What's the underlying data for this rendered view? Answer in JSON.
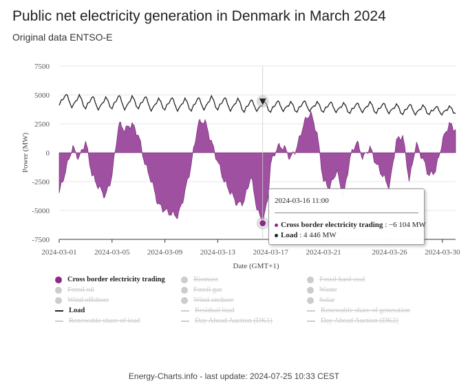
{
  "header": {
    "title": "Public net electricity generation in Denmark in March 2024",
    "subtitle": "Original data ENTSO-E"
  },
  "chart_data": {
    "type": "area",
    "title": "Public net electricity generation in Denmark in March 2024",
    "xlabel": "Date (GMT+1)",
    "ylabel": "Power (MW)",
    "ylim": [
      -7500,
      7500
    ],
    "yticks": [
      7500,
      5000,
      2500,
      0,
      -2500,
      -5000,
      -7500
    ],
    "ytick_labels": [
      "7500",
      "5000",
      "2500",
      "0",
      "-2500",
      "-5000",
      "-7500"
    ],
    "xlim_days": [
      1,
      31
    ],
    "xticks": [
      {
        "label": "2024-03-01",
        "day": 1
      },
      {
        "label": "2024-03-05",
        "day": 5
      },
      {
        "label": "2024-03-09",
        "day": 9
      },
      {
        "label": "2024-03-13",
        "day": 13
      },
      {
        "label": "2024-03-17",
        "day": 17
      },
      {
        "label": "2024-03-21",
        "day": 21
      },
      {
        "label": "2024-03-26",
        "day": 26
      },
      {
        "label": "2024-03-30",
        "day": 30
      }
    ],
    "grid": true,
    "series": [
      {
        "name": "Cross border electricity trading",
        "color": "#8b2a8b",
        "style": "area",
        "x_day": [
          1,
          1.5,
          2,
          2.5,
          3,
          3.5,
          4,
          4.5,
          5,
          5.5,
          6,
          6.5,
          7,
          7.5,
          8,
          8.5,
          9,
          9.5,
          10,
          10.5,
          11,
          11.5,
          12,
          12.5,
          13,
          13.5,
          14,
          14.5,
          15,
          15.5,
          16,
          16.4,
          16.8,
          17,
          17.5,
          18,
          18.5,
          19,
          19.5,
          20,
          20.5,
          21,
          21.5,
          22,
          22.5,
          23,
          23.5,
          24,
          24.5,
          25,
          25.5,
          26,
          26.5,
          27,
          27.5,
          28,
          28.5,
          29,
          29.5,
          30,
          30.5,
          31
        ],
        "values": [
          -3500,
          -1500,
          500,
          -500,
          1000,
          -2000,
          -3000,
          -3800,
          -2000,
          2500,
          2000,
          2500,
          1500,
          -1000,
          -2500,
          -4500,
          -5000,
          -5300,
          -5500,
          -3500,
          -1000,
          2500,
          2800,
          1000,
          -800,
          -2500,
          -3500,
          -4500,
          -4200,
          -2000,
          -5000,
          -6104,
          -4000,
          -1000,
          500,
          500,
          -500,
          500,
          2500,
          3500,
          1800,
          -2500,
          -3000,
          -1500,
          -4000,
          -500,
          1000,
          -500,
          500,
          -1000,
          -2000,
          -3000,
          1000,
          1500,
          -2500,
          800,
          -500,
          -2000,
          -1500,
          1000,
          2500,
          2000
        ]
      },
      {
        "name": "Load",
        "color": "#222222",
        "style": "line",
        "x_day": [
          1,
          1.5,
          2,
          2.5,
          3,
          3.5,
          4,
          4.5,
          5,
          5.5,
          6,
          6.5,
          7,
          7.5,
          8,
          8.5,
          9,
          9.5,
          10,
          10.5,
          11,
          11.5,
          12,
          12.5,
          13,
          13.5,
          14,
          14.5,
          15,
          15.5,
          16,
          16.5,
          17,
          17.5,
          18,
          18.5,
          19,
          19.5,
          20,
          20.5,
          21,
          21.5,
          22,
          22.5,
          23,
          23.5,
          24,
          24.5,
          25,
          25.5,
          26,
          26.5,
          27,
          27.5,
          28,
          28.5,
          29,
          29.5,
          30,
          30.5,
          31
        ],
        "values": [
          4100,
          5100,
          3900,
          5000,
          3800,
          4900,
          3700,
          4800,
          3800,
          5000,
          3700,
          4900,
          3800,
          4900,
          3600,
          4700,
          3700,
          4800,
          3600,
          4700,
          3600,
          4800,
          3700,
          4900,
          3700,
          4800,
          3600,
          4700,
          3500,
          4600,
          3600,
          4446,
          3500,
          4500,
          3600,
          4400,
          3500,
          4500,
          3600,
          4400,
          3500,
          4400,
          3500,
          4300,
          3400,
          4300,
          3500,
          4400,
          3400,
          4300,
          3400,
          4200,
          3300,
          4200,
          3300,
          4100,
          3300,
          4000,
          3300,
          4000,
          3400
        ]
      }
    ],
    "hover": {
      "date": "2024-03-16 11:00",
      "day": 16.4,
      "rows": [
        {
          "name": "Cross border electricity trading",
          "value": "−6 104 MW",
          "value_num": -6104,
          "color": "#8b2a8b"
        },
        {
          "name": "Load",
          "value": "4 446 MW",
          "value_num": 4446,
          "color": "#222222"
        }
      ]
    }
  },
  "legend": {
    "items": [
      {
        "label": "Cross border electricity trading",
        "active": true,
        "marker": "dot",
        "color": "#8b2a8b"
      },
      {
        "label": "Biomass",
        "active": false,
        "marker": "dot",
        "color": "#cccccc"
      },
      {
        "label": "Fossil hard coal",
        "active": false,
        "marker": "dot",
        "color": "#cccccc"
      },
      {
        "label": "Fossil oil",
        "active": false,
        "marker": "dot",
        "color": "#cccccc"
      },
      {
        "label": "Fossil gas",
        "active": false,
        "marker": "dot",
        "color": "#cccccc"
      },
      {
        "label": "Waste",
        "active": false,
        "marker": "dot",
        "color": "#cccccc"
      },
      {
        "label": "Wind offshore",
        "active": false,
        "marker": "dot",
        "color": "#cccccc"
      },
      {
        "label": "Wind onshore",
        "active": false,
        "marker": "dot",
        "color": "#cccccc"
      },
      {
        "label": "Solar",
        "active": false,
        "marker": "dot",
        "color": "#cccccc"
      },
      {
        "label": "Load",
        "active": true,
        "marker": "line",
        "color": "#222222"
      },
      {
        "label": "Residual load",
        "active": false,
        "marker": "line",
        "color": "#cccccc"
      },
      {
        "label": "Renewable share of generation",
        "active": false,
        "marker": "line",
        "color": "#cccccc"
      },
      {
        "label": "Renewable share of load",
        "active": false,
        "marker": "line",
        "color": "#cccccc"
      },
      {
        "label": "Day Ahead Auction (DK1)",
        "active": false,
        "marker": "line",
        "color": "#cccccc"
      },
      {
        "label": "Day Ahead Auction (DK2)",
        "active": false,
        "marker": "line",
        "color": "#cccccc"
      }
    ]
  },
  "footer": {
    "text": "Energy-Charts.info - last update: 2024-07-25 10:33 CEST"
  }
}
